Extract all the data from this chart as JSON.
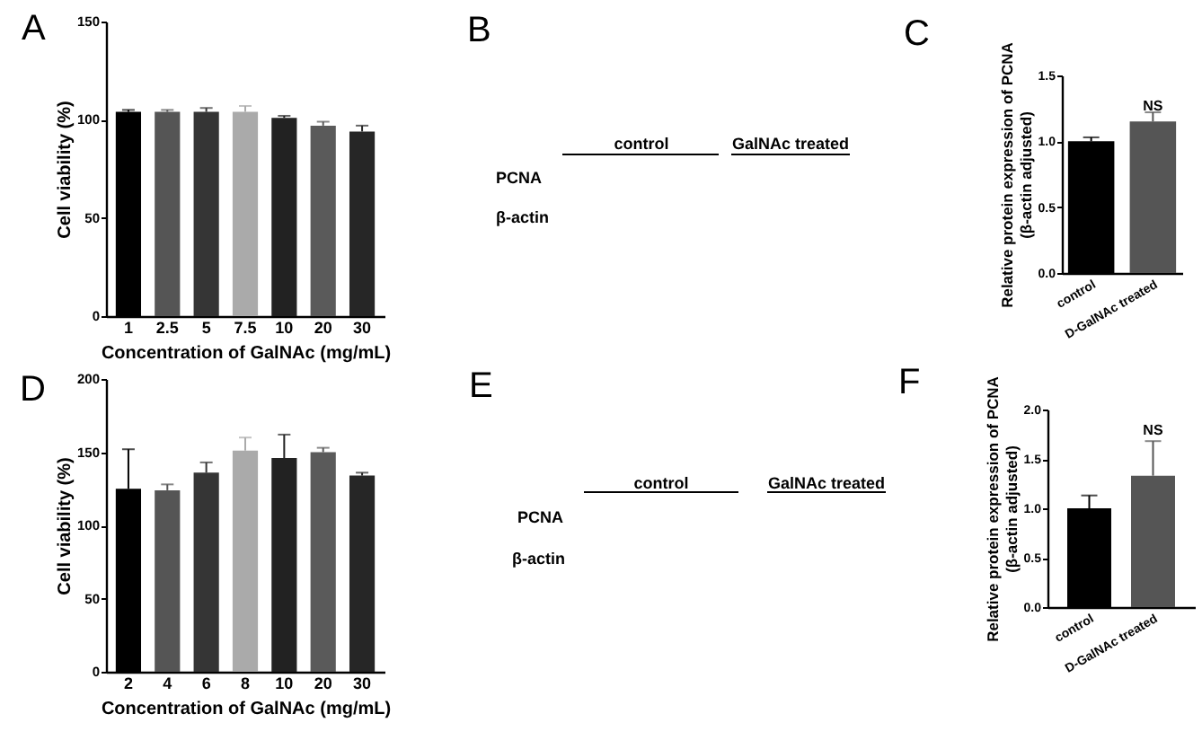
{
  "chart_data": [
    {
      "type": "bar",
      "title": "A",
      "xlabel": "Concentration of GalNAc (mg/mL)",
      "ylabel": "Cell viability (%)",
      "categories": [
        "1",
        "2.5",
        "5",
        "7.5",
        "10",
        "20",
        "30"
      ],
      "values": [
        104,
        104,
        104,
        104,
        101,
        97,
        94
      ],
      "colors": [
        "#000000",
        "#555555",
        "#353535",
        "#aaaaaa",
        "#222222",
        "#5a5a5a",
        "#262626"
      ],
      "errors": [
        [
          104,
          105
        ],
        [
          104,
          105
        ],
        [
          104,
          106
        ],
        [
          104,
          107
        ],
        [
          101,
          102
        ],
        [
          97,
          99
        ],
        [
          94,
          97
        ]
      ],
      "ylim": [
        0,
        150
      ],
      "yticks": [
        0,
        50,
        100,
        150
      ]
    },
    {
      "type": "other",
      "title": "B",
      "annotations": [
        "control",
        "GalNAc treated",
        "PCNA",
        "β-actin"
      ]
    },
    {
      "type": "bar",
      "title": "C",
      "ylabel": "Relative protein expression of PCNA\n(β-actin adjusted)",
      "categories": [
        "control",
        "D-GalNAc treated"
      ],
      "values": [
        1.0,
        1.15
      ],
      "colors": [
        "#000000",
        "#505050"
      ],
      "errors": [
        [
          1.0,
          1.03
        ],
        [
          1.15,
          1.22
        ]
      ],
      "ylim": [
        0,
        1.5
      ],
      "yticks": [
        {
          "value": 0,
          "label": "0.0"
        },
        0.5,
        {
          "value": 1,
          "label": "1.0"
        },
        1.5
      ],
      "annotations": [
        {
          "text": "NS",
          "x": "D-GalNAc treated",
          "y": 1.26
        }
      ]
    },
    {
      "type": "bar",
      "title": "D",
      "xlabel": "Concentration of GalNAc (mg/mL)",
      "ylabel": "Cell viability (%)",
      "categories": [
        "2",
        "4",
        "6",
        "8",
        "10",
        "20",
        "30"
      ],
      "values": [
        125,
        124,
        136,
        151,
        146,
        150,
        134
      ],
      "colors": [
        "#000000",
        "#5a5a5a",
        "#3a3a3a",
        "#a8a8a8",
        "#222222",
        "#5c5c5c",
        "#262626"
      ],
      "errors": [
        [
          125,
          152
        ],
        [
          124,
          128
        ],
        [
          136,
          143
        ],
        [
          151,
          160
        ],
        [
          146,
          162
        ],
        [
          150,
          153
        ],
        [
          134,
          136
        ]
      ],
      "ylim": [
        0,
        200
      ],
      "yticks": [
        0,
        50,
        100,
        150,
        200
      ]
    },
    {
      "type": "other",
      "title": "E",
      "annotations": [
        "control",
        "GalNAc treated",
        "PCNA",
        "β-actin"
      ]
    },
    {
      "type": "bar",
      "title": "F",
      "ylabel": "Relative protein expression of  PCNA\n(β-actin adjusted)",
      "categories": [
        "control",
        "D-GalNAc treated"
      ],
      "values": [
        1.0,
        1.33
      ],
      "colors": [
        "#000000",
        "#505050"
      ],
      "errors": [
        [
          1.0,
          1.13
        ],
        [
          1.33,
          1.68
        ]
      ],
      "ylim": [
        0,
        2
      ],
      "yticks": [
        {
          "value": 0,
          "label": "0.0"
        },
        0.5,
        {
          "value": 1,
          "label": "1.0"
        },
        1.5,
        {
          "value": 2,
          "label": "2.0"
        }
      ],
      "annotations": [
        {
          "text": "NS",
          "x": "D-GalNAc treated",
          "y": 1.78
        }
      ]
    }
  ]
}
